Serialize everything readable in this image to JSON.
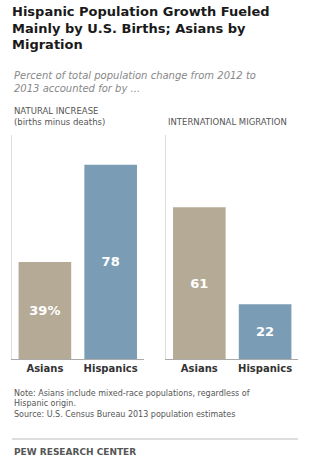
{
  "title": "Hispanic Population Growth Fueled\nMainly by U.S. Births; Asians by\nMigration",
  "subtitle": "Percent of total population change from 2012 to\n2013 accounted for by ...",
  "annotations": [
    "Note: Asians include mixed-race populations, regardless of\nHispanic origin.\nSource: U.S. Census Bureau 2013 population estimates",
    "PEW RESEARCH CENTER"
  ],
  "chart_data": [
    {
      "type": "bar",
      "title": "NATURAL INCREASE\n(births minus deaths)",
      "categories": [
        "Asians",
        "Hispanics"
      ],
      "values": [
        39,
        78
      ],
      "value_labels": [
        "39%",
        "78"
      ],
      "colors": [
        "#b5aa96",
        "#7a9db5"
      ],
      "ylim": [
        0,
        90
      ],
      "data_labels": true,
      "tick_labels": "x",
      "grid": false
    },
    {
      "type": "bar",
      "title": "INTERNATIONAL MIGRATION",
      "categories": [
        "Asians",
        "Hispanics"
      ],
      "values": [
        61,
        22
      ],
      "colors": [
        "#b5aa96",
        "#7a9db5"
      ],
      "ylim": [
        0,
        90
      ],
      "data_labels": true,
      "tick_labels": "x",
      "grid": false
    }
  ]
}
